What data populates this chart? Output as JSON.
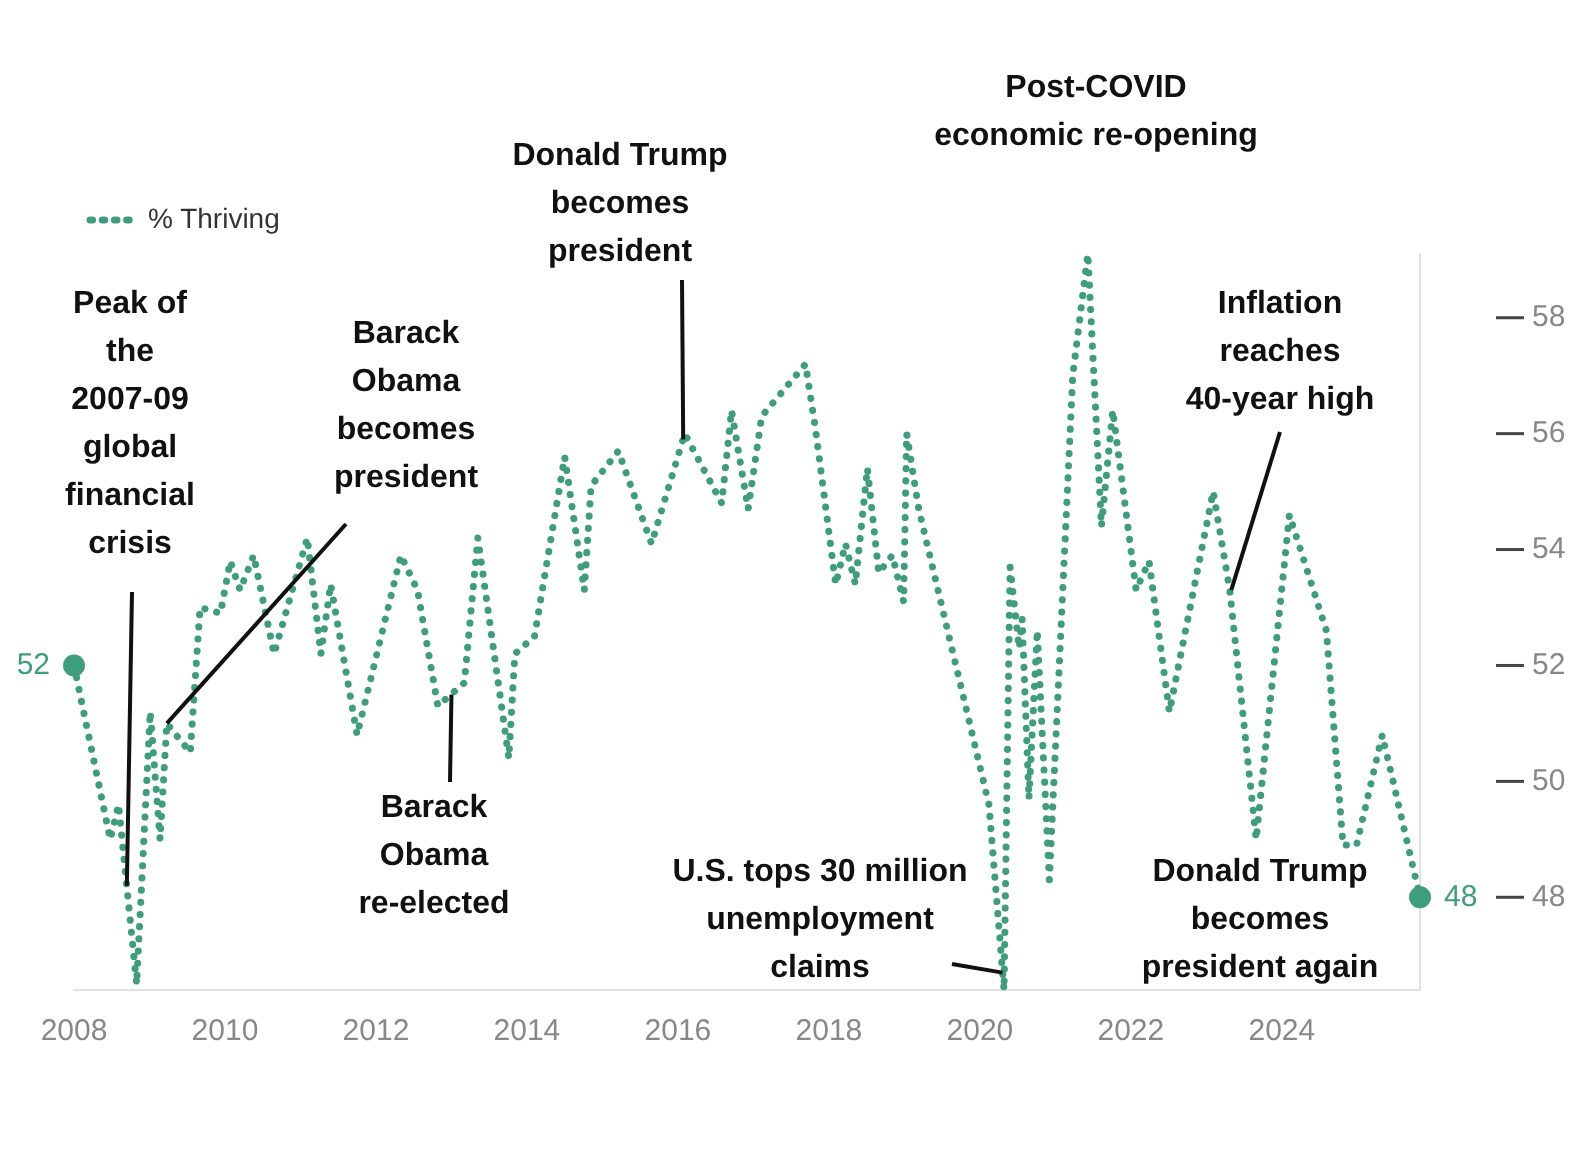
{
  "chart_data": {
    "type": "line",
    "x": [
      2008.0,
      2008.48,
      2008.59,
      2008.66,
      2008.83,
      2009.01,
      2009.14,
      2009.23,
      2009.54,
      2009.67,
      2009.94,
      2010.07,
      2010.2,
      2010.38,
      2010.65,
      2011.09,
      2011.27,
      2011.4,
      2011.75,
      2012.33,
      2012.55,
      2012.82,
      2013.17,
      2013.35,
      2013.76,
      2013.84,
      2014.1,
      2014.5,
      2014.76,
      2014.85,
      2015.21,
      2015.65,
      2016.09,
      2016.58,
      2016.71,
      2016.93,
      2017.11,
      2017.69,
      2017.82,
      2018.09,
      2018.22,
      2018.35,
      2018.51,
      2018.66,
      2018.84,
      2018.99,
      2019.03,
      2019.19,
      2020.12,
      2020.32,
      2020.4,
      2020.52,
      2020.56,
      2020.65,
      2020.76,
      2020.92,
      2021.23,
      2021.43,
      2021.61,
      2021.76,
      2022.07,
      2022.24,
      2022.51,
      2023.09,
      2023.31,
      2023.66,
      2024.1,
      2024.59,
      2024.81,
      2024.99,
      2025.33,
      2025.83
    ],
    "series": [
      {
        "name": "% Thriving",
        "color": "#3e9e7b",
        "values": [
          52.0,
          49.0,
          49.6,
          48.7,
          46.5,
          51.2,
          49.0,
          51.0,
          50.5,
          53.0,
          52.9,
          53.8,
          53.3,
          53.9,
          52.2,
          54.2,
          52.2,
          53.4,
          50.8,
          53.9,
          53.3,
          51.3,
          51.7,
          54.2,
          50.4,
          52.2,
          52.5,
          55.6,
          53.3,
          55.1,
          55.7,
          54.1,
          56.0,
          54.8,
          56.4,
          54.7,
          56.3,
          57.2,
          56.1,
          53.4,
          54.1,
          53.4,
          55.4,
          53.6,
          53.9,
          53.1,
          56.0,
          54.7,
          49.6,
          46.4,
          53.7,
          52.3,
          52.8,
          49.7,
          52.6,
          48.3,
          57.0,
          59.1,
          54.4,
          56.4,
          53.3,
          53.8,
          51.2,
          55.0,
          53.3,
          49.0,
          54.6,
          52.6,
          48.9,
          48.9,
          50.8,
          48.0
        ],
        "value_labels": [
          "52",
          null,
          null,
          null,
          null,
          null,
          null,
          null,
          null,
          null,
          null,
          null,
          null,
          null,
          null,
          null,
          null,
          null,
          null,
          null,
          null,
          null,
          null,
          null,
          null,
          null,
          null,
          null,
          null,
          null,
          null,
          null,
          null,
          null,
          null,
          null,
          null,
          null,
          null,
          null,
          null,
          null,
          null,
          null,
          null,
          null,
          null,
          null,
          null,
          null,
          null,
          null,
          null,
          null,
          null,
          null,
          null,
          null,
          null,
          null,
          null,
          null,
          null,
          null,
          null,
          null,
          null,
          null,
          null,
          null,
          null,
          "48"
        ]
      }
    ],
    "xlim": [
      2008.0,
      2025.83
    ],
    "xticks": [
      2008,
      2010,
      2012,
      2014,
      2016,
      2018,
      2020,
      2022,
      2024
    ],
    "ylim": [
      46.4,
      59.1
    ],
    "yticks": [
      48,
      50,
      52,
      54,
      56,
      58
    ],
    "grid": false,
    "legend": "top left",
    "line_style": "dotted",
    "marker": "none",
    "annotations": [
      {
        "text": "Peak of the 2007-09 global financial crisis",
        "x": 2008.7,
        "y": 48.2
      },
      {
        "text": "Barack Obama becomes president",
        "x": 2009.23,
        "y": 51.0
      },
      {
        "text": "Barack Obama re-elected",
        "x": 2013.0,
        "y": 51.5
      },
      {
        "text": "Donald Trump becomes president",
        "x": 2016.07,
        "y": 55.9
      },
      "Post-COVID economic re-opening",
      {
        "text": "U.S. tops 30 million unemployment claims",
        "x": 2020.3,
        "y": 46.7
      },
      {
        "text": "Inflation reaches 40-year high",
        "x": 2023.33,
        "y": 53.3
      },
      "Donald Trump becomes president again"
    ]
  }
}
